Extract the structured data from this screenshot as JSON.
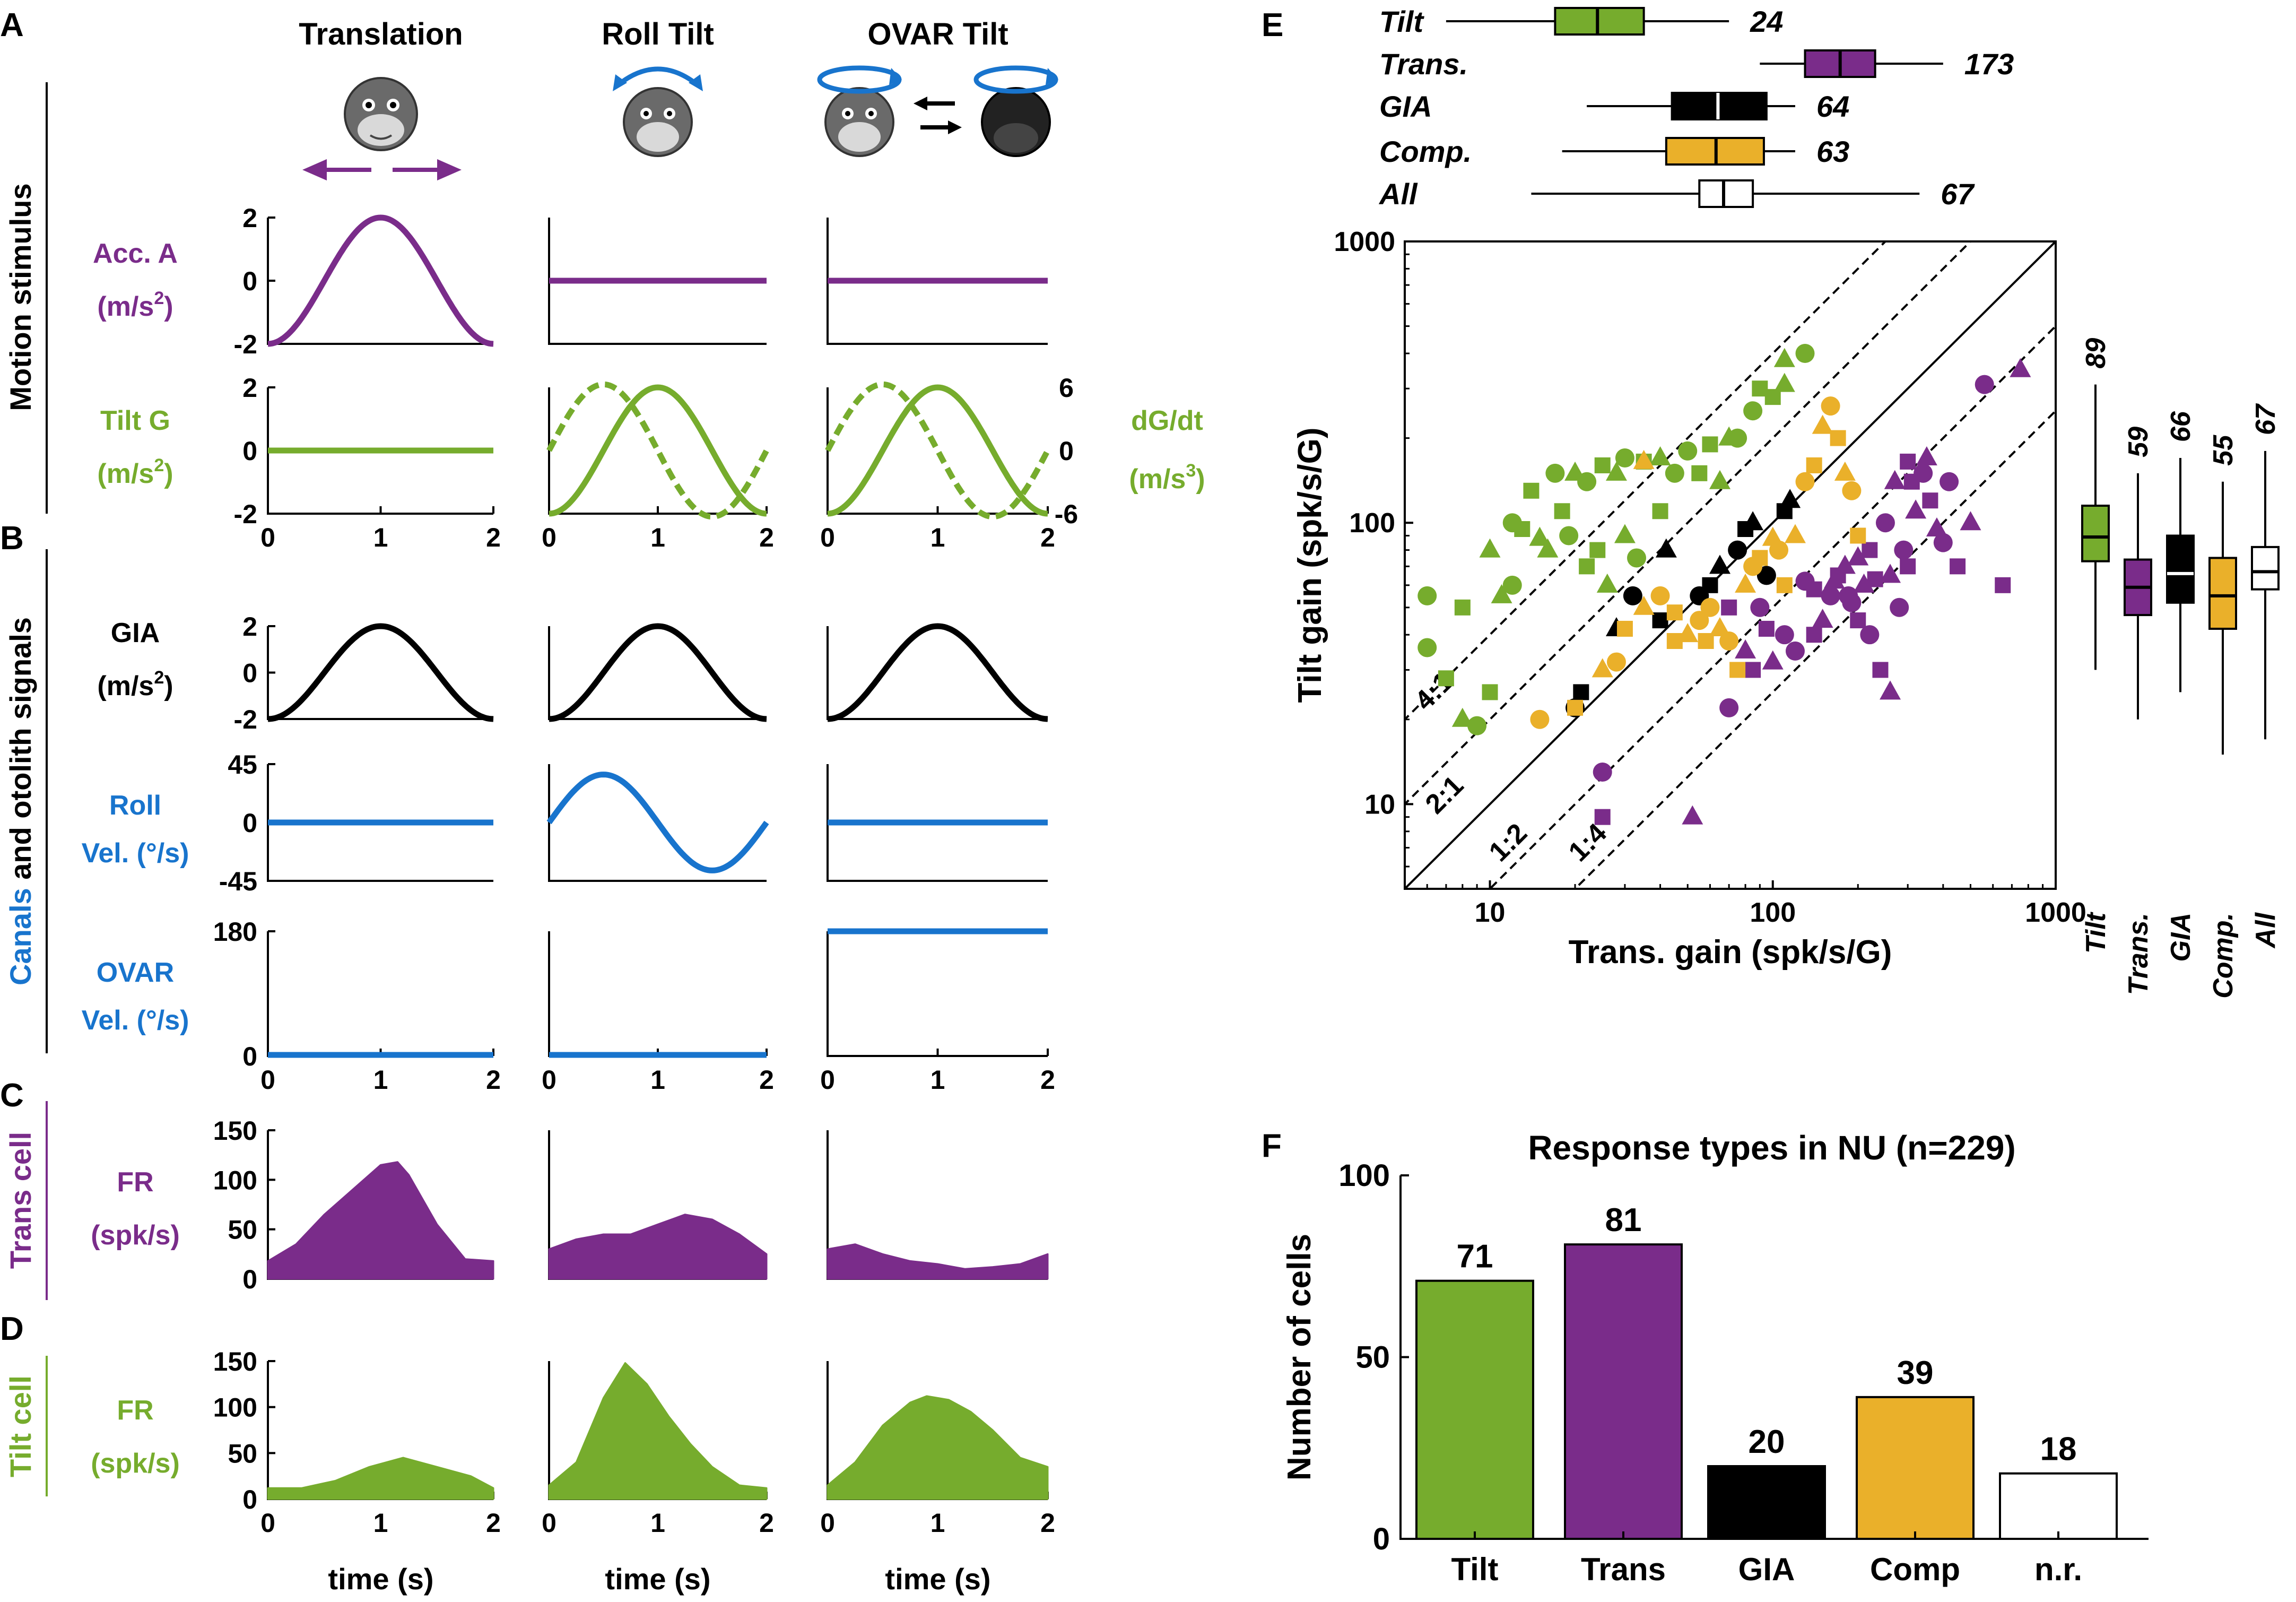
{
  "colors": {
    "tilt": "#76AC2D",
    "trans": "#7A2C8A",
    "gia": "#000000",
    "comp": "#EAB02A",
    "canal": "#1874CD",
    "nr": "#FFFFFF"
  },
  "panel_letters": {
    "a": "A",
    "b": "B",
    "c": "C",
    "d": "D",
    "e": "E",
    "f": "F"
  },
  "columns": {
    "translation": "Translation",
    "roll": "Roll Tilt",
    "ovar": "OVAR Tilt"
  },
  "group_labels": {
    "motion": "Motion stimulus",
    "canals": "Canals",
    "and_otolith": " and otolith signals",
    "trans_cell": "Trans cell",
    "tilt_cell": "Tilt cell"
  },
  "row_labels": {
    "acc_1": "Acc. A",
    "acc_2": "(m/s",
    "acc_exp": "2",
    "acc_close": ")",
    "tiltg_1": "Tilt G",
    "tiltg_2": "(m/s",
    "tiltg_exp": "2",
    "tiltg_close": ")",
    "dgdt_1": "dG/dt",
    "dgdt_2": "(m/s",
    "dgdt_exp": "3",
    "dgdt_close": ")",
    "gia_1": "GIA",
    "gia_2": "(m/s",
    "gia_exp": "2",
    "gia_close": ")",
    "roll_1": "Roll",
    "roll_2": "Vel. (°/s)",
    "ovar_1": "OVAR",
    "ovar_2": "Vel. (°/s)",
    "fr_trans_1": "FR",
    "fr_trans_2": "(spk/s)",
    "fr_tilt_1": "FR",
    "fr_tilt_2": "(spk/s)"
  },
  "xlabel": "time (s)",
  "chart_data": [
    {
      "panel": "A",
      "type": "line",
      "row": "Acc. A (m/s2)",
      "ylim": [
        -2,
        2
      ],
      "yticks": [
        "2",
        "0",
        "-2"
      ],
      "xlim": [
        0,
        2
      ],
      "series": [
        {
          "column": "Translation",
          "form": "-2cos(pi t)",
          "color": "trans"
        },
        {
          "column": "Roll Tilt",
          "value": 0,
          "color": "trans"
        },
        {
          "column": "OVAR Tilt",
          "value": 0,
          "color": "trans"
        }
      ]
    },
    {
      "panel": "A",
      "type": "line",
      "row": "Tilt G (m/s2)",
      "ylim": [
        -2,
        2
      ],
      "yticks": [
        "2",
        "0",
        "-2"
      ],
      "right_ylim": [
        -6,
        6
      ],
      "right_yticks": [
        "6",
        "0",
        "-6"
      ],
      "xticks": [
        "0",
        "1",
        "2"
      ],
      "series": [
        {
          "column": "Translation",
          "value": 0,
          "color": "tilt"
        },
        {
          "column": "Roll Tilt",
          "form": "-2cos(pi t); dashed dG/dt",
          "color": "tilt"
        },
        {
          "column": "OVAR Tilt",
          "form": "-2cos(pi t); dashed dG/dt",
          "color": "tilt"
        }
      ]
    },
    {
      "panel": "B",
      "type": "line",
      "row": "GIA (m/s2)",
      "ylim": [
        -2,
        2
      ],
      "yticks": [
        "2",
        "0",
        "-2"
      ],
      "series": [
        {
          "column": "Translation",
          "form": "-2cos(pi t)",
          "color": "gia"
        },
        {
          "column": "Roll Tilt",
          "form": "-2cos(pi t)",
          "color": "gia"
        },
        {
          "column": "OVAR Tilt",
          "form": "-2cos(pi t)",
          "color": "gia"
        }
      ]
    },
    {
      "panel": "B",
      "type": "line",
      "row": "Roll Vel. (°/s)",
      "ylim": [
        -45,
        45
      ],
      "yticks": [
        "45",
        "0",
        "-45"
      ],
      "series": [
        {
          "column": "Translation",
          "value": 0,
          "color": "canal"
        },
        {
          "column": "Roll Tilt",
          "form": "~37 sin(pi t)",
          "color": "canal"
        },
        {
          "column": "OVAR Tilt",
          "value": 0,
          "color": "canal"
        }
      ]
    },
    {
      "panel": "B",
      "type": "line",
      "row": "OVAR Vel. (°/s)",
      "ylim": [
        0,
        180
      ],
      "yticks": [
        "180",
        "0"
      ],
      "xticks": [
        "0",
        "1",
        "2"
      ],
      "series": [
        {
          "column": "Translation",
          "value": 0,
          "color": "canal"
        },
        {
          "column": "Roll Tilt",
          "value": 0,
          "color": "canal"
        },
        {
          "column": "OVAR Tilt",
          "value": 180,
          "color": "canal"
        }
      ]
    },
    {
      "panel": "C",
      "type": "area",
      "row": "Trans cell FR (spk/s)",
      "ylim": [
        0,
        150
      ],
      "yticks": [
        "150",
        "100",
        "50",
        "0"
      ],
      "series": [
        {
          "column": "Translation",
          "t": [
            0,
            0.25,
            0.5,
            0.75,
            1,
            1.15,
            1.25,
            1.5,
            1.75,
            2
          ],
          "fr": [
            18,
            35,
            65,
            90,
            115,
            118,
            105,
            55,
            20,
            18
          ]
        },
        {
          "column": "Roll Tilt",
          "t": [
            0,
            0.25,
            0.5,
            0.75,
            1,
            1.25,
            1.5,
            1.75,
            2
          ],
          "fr": [
            30,
            40,
            45,
            45,
            55,
            65,
            60,
            45,
            25
          ]
        },
        {
          "column": "OVAR Tilt",
          "t": [
            0,
            0.25,
            0.5,
            0.75,
            1,
            1.25,
            1.5,
            1.75,
            2
          ],
          "fr": [
            30,
            35,
            25,
            18,
            15,
            10,
            12,
            15,
            25
          ]
        }
      ]
    },
    {
      "panel": "D",
      "type": "area",
      "row": "Tilt cell FR (spk/s)",
      "ylim": [
        0,
        150
      ],
      "yticks": [
        "150",
        "100",
        "50",
        "0"
      ],
      "xticks": [
        "0",
        "1",
        "2"
      ],
      "series": [
        {
          "column": "Translation",
          "t": [
            0,
            0.3,
            0.6,
            0.9,
            1.2,
            1.5,
            1.8,
            2
          ],
          "fr": [
            12,
            12,
            20,
            35,
            45,
            35,
            25,
            12
          ]
        },
        {
          "column": "Roll Tilt",
          "t": [
            0,
            0.25,
            0.5,
            0.7,
            0.9,
            1.1,
            1.3,
            1.5,
            1.75,
            2
          ],
          "fr": [
            15,
            40,
            110,
            148,
            125,
            90,
            60,
            35,
            15,
            12
          ]
        },
        {
          "column": "OVAR Tilt",
          "t": [
            0,
            0.25,
            0.5,
            0.75,
            0.9,
            1.1,
            1.3,
            1.5,
            1.75,
            2
          ],
          "fr": [
            15,
            40,
            80,
            105,
            112,
            108,
            95,
            75,
            45,
            35
          ]
        }
      ]
    },
    {
      "panel": "E",
      "type": "scatter",
      "title": "",
      "xlabel": "Trans. gain (spk/s/G)",
      "ylabel": "Tilt gain (spk/s/G)",
      "scale": "log",
      "xlim": [
        5,
        1000
      ],
      "ylim": [
        5,
        1000
      ],
      "xticks": [
        "10",
        "100",
        "1000"
      ],
      "yticks": [
        "10",
        "100",
        "1000"
      ],
      "diagonals": [
        "4:1",
        "2:1",
        "1:2",
        "1:4"
      ],
      "markers": [
        "circle",
        "square",
        "triangle"
      ],
      "series": [
        {
          "name": "Tilt",
          "color": "tilt",
          "points": [
            [
              6,
              36
            ],
            [
              7,
              28
            ],
            [
              8,
              20
            ],
            [
              9,
              19
            ],
            [
              10,
              25
            ],
            [
              11,
              55
            ],
            [
              12,
              60
            ],
            [
              13,
              95
            ],
            [
              15,
              88
            ],
            [
              17,
              150
            ],
            [
              18,
              110
            ],
            [
              20,
              150
            ],
            [
              22,
              140
            ],
            [
              25,
              160
            ],
            [
              28,
              150
            ],
            [
              30,
              170
            ],
            [
              35,
              165
            ],
            [
              40,
              170
            ],
            [
              50,
              180
            ],
            [
              60,
              190
            ],
            [
              70,
              200
            ],
            [
              85,
              250
            ],
            [
              100,
              280
            ],
            [
              110,
              380
            ],
            [
              6,
              55
            ],
            [
              8,
              50
            ],
            [
              10,
              80
            ],
            [
              12,
              100
            ],
            [
              14,
              130
            ],
            [
              16,
              80
            ],
            [
              19,
              90
            ],
            [
              24,
              80
            ],
            [
              30,
              90
            ],
            [
              45,
              150
            ],
            [
              55,
              150
            ],
            [
              65,
              140
            ],
            [
              75,
              200
            ],
            [
              90,
              300
            ],
            [
              110,
              310
            ],
            [
              130,
              400
            ],
            [
              22,
              70
            ],
            [
              26,
              60
            ],
            [
              33,
              75
            ],
            [
              40,
              110
            ]
          ]
        },
        {
          "name": "Trans.",
          "color": "trans",
          "points": [
            [
              25,
              13
            ],
            [
              25,
              9
            ],
            [
              52,
              9
            ],
            [
              70,
              22
            ],
            [
              85,
              30
            ],
            [
              100,
              32
            ],
            [
              120,
              35
            ],
            [
              140,
              40
            ],
            [
              150,
              45
            ],
            [
              160,
              55
            ],
            [
              170,
              65
            ],
            [
              180,
              70
            ],
            [
              190,
              52
            ],
            [
              200,
              45
            ],
            [
              210,
              60
            ],
            [
              220,
              40
            ],
            [
              240,
              30
            ],
            [
              260,
              25
            ],
            [
              280,
              50
            ],
            [
              300,
              70
            ],
            [
              320,
              110
            ],
            [
              340,
              150
            ],
            [
              360,
              120
            ],
            [
              380,
              95
            ],
            [
              400,
              85
            ],
            [
              450,
              70
            ],
            [
              500,
              100
            ],
            [
              560,
              310
            ],
            [
              650,
              60
            ],
            [
              750,
              350
            ],
            [
              130,
              62
            ],
            [
              140,
              58
            ],
            [
              165,
              62
            ],
            [
              185,
              55
            ],
            [
              230,
              63
            ],
            [
              260,
              65
            ],
            [
              290,
              80
            ],
            [
              310,
              140
            ],
            [
              350,
              170
            ],
            [
              420,
              140
            ],
            [
              300,
              165
            ],
            [
              270,
              140
            ],
            [
              250,
              100
            ],
            [
              220,
              80
            ],
            [
              200,
              75
            ],
            [
              110,
              40
            ],
            [
              95,
              42
            ],
            [
              80,
              35
            ],
            [
              90,
              50
            ],
            [
              70,
              50
            ]
          ]
        },
        {
          "name": "GIA",
          "color": "gia",
          "points": [
            [
              20,
              22
            ],
            [
              21,
              25
            ],
            [
              28,
              42
            ],
            [
              32,
              55
            ],
            [
              40,
              45
            ],
            [
              42,
              80
            ],
            [
              55,
              55
            ],
            [
              60,
              60
            ],
            [
              65,
              70
            ],
            [
              75,
              80
            ],
            [
              80,
              95
            ],
            [
              85,
              100
            ],
            [
              95,
              65
            ],
            [
              110,
              110
            ],
            [
              115,
              120
            ]
          ]
        },
        {
          "name": "Comp.",
          "color": "comp",
          "points": [
            [
              15,
              20
            ],
            [
              20,
              22
            ],
            [
              25,
              30
            ],
            [
              28,
              32
            ],
            [
              30,
              42
            ],
            [
              35,
              50
            ],
            [
              40,
              55
            ],
            [
              45,
              48
            ],
            [
              50,
              40
            ],
            [
              55,
              45
            ],
            [
              58,
              38
            ],
            [
              65,
              42
            ],
            [
              70,
              38
            ],
            [
              75,
              30
            ],
            [
              80,
              60
            ],
            [
              85,
              70
            ],
            [
              90,
              75
            ],
            [
              100,
              88
            ],
            [
              105,
              80
            ],
            [
              110,
              60
            ],
            [
              120,
              90
            ],
            [
              130,
              140
            ],
            [
              140,
              160
            ],
            [
              150,
              220
            ],
            [
              160,
              260
            ],
            [
              170,
              200
            ],
            [
              180,
              150
            ],
            [
              190,
              130
            ],
            [
              200,
              90
            ],
            [
              35,
              165
            ],
            [
              60,
              50
            ],
            [
              45,
              38
            ]
          ]
        }
      ],
      "top_boxplots": [
        {
          "name": "Tilt",
          "median": "24"
        },
        {
          "name": "Trans.",
          "median": "173"
        },
        {
          "name": "GIA",
          "median": "64"
        },
        {
          "name": "Comp.",
          "median": "63"
        },
        {
          "name": "All",
          "median": "67"
        }
      ],
      "right_boxplots": [
        {
          "name": "Tilt",
          "median": "89"
        },
        {
          "name": "Trans.",
          "median": "59"
        },
        {
          "name": "GIA",
          "median": "66"
        },
        {
          "name": "Comp.",
          "median": "55"
        },
        {
          "name": "All",
          "median": "67"
        }
      ]
    },
    {
      "panel": "F",
      "type": "bar",
      "title": "Response types in NU (n=229)",
      "ylabel": "Number of cells",
      "ylim": [
        0,
        100
      ],
      "yticks": [
        "0",
        "50",
        "100"
      ],
      "categories": [
        "Tilt",
        "Trans",
        "GIA",
        "Comp",
        "n.r."
      ],
      "values": [
        71,
        81,
        20,
        39,
        18
      ],
      "colors": [
        "tilt",
        "trans",
        "gia",
        "comp",
        "nr"
      ]
    }
  ]
}
